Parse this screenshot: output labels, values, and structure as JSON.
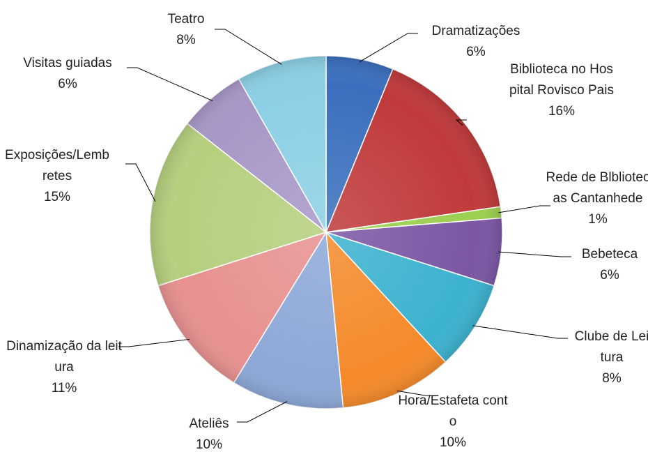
{
  "chart_data": {
    "type": "pie",
    "categories": [
      "Dramatizações",
      "Biblioteca no Hospital Rovisco Pais",
      "Rede de Blbliotecas Cantanhede",
      "Bebeteca",
      "Clube de Leitura",
      "Hora/Estafeta conto",
      "Ateliês",
      "Dinamização da leitura",
      "Exposições/Lembretes",
      "Visitas guiadas",
      "Teatro"
    ],
    "values": [
      6,
      16,
      1,
      6,
      8,
      10,
      10,
      11,
      15,
      6,
      8
    ],
    "value_labels": [
      "6%",
      "16%",
      "1%",
      "6%",
      "8%",
      "10%",
      "10%",
      "11%",
      "15%",
      "6%",
      "8%"
    ],
    "colors": [
      "#3b6fbd",
      "#c03a3b",
      "#9ccf4f",
      "#7b57a4",
      "#3cb2cf",
      "#f58a2b",
      "#8da8d7",
      "#e79190",
      "#b5cf7e",
      "#a797c7",
      "#8ccfe5"
    ]
  }
}
